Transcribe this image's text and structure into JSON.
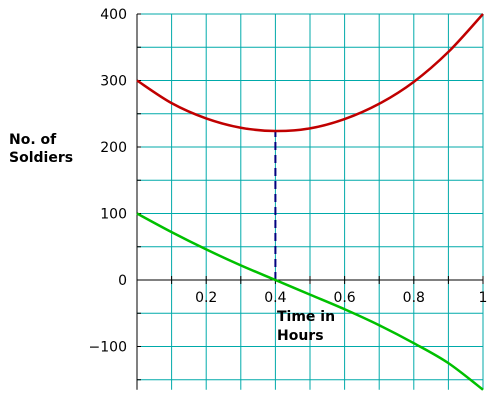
{
  "chart_data": {
    "type": "line",
    "xlabel": "Time in Hours",
    "xlabel_lines": [
      "Time in",
      "Hours"
    ],
    "ylabel": "No. of Soldiers",
    "ylabel_lines": [
      "No. of",
      "Soldiers"
    ],
    "xlim": [
      0,
      1
    ],
    "ylim": [
      -165,
      400
    ],
    "x_ticks": [
      0.2,
      0.4,
      0.6,
      0.8,
      1
    ],
    "x_tick_labels": [
      "0.2",
      "0.4",
      "0.6",
      "0.8",
      "1"
    ],
    "y_ticks": [
      400,
      300,
      200,
      100,
      0,
      -100
    ],
    "y_tick_labels": [
      "400",
      "300",
      "200",
      "100",
      "0",
      "−100"
    ],
    "grid": true,
    "series": [
      {
        "color": "#c00000",
        "x": [
          0,
          0.1,
          0.2,
          0.3,
          0.4,
          0.5,
          0.6,
          0.7,
          0.8,
          0.9,
          1.0
        ],
        "y": [
          300,
          266,
          243,
          229,
          224,
          228,
          242,
          265,
          298,
          343,
          400
        ]
      },
      {
        "color": "#00c000",
        "x": [
          0,
          0.1,
          0.2,
          0.3,
          0.4,
          0.5,
          0.6,
          0.7,
          0.8,
          0.9,
          1.0
        ],
        "y": [
          100,
          72,
          46,
          22,
          0,
          -22,
          -44,
          -68,
          -95,
          -125,
          -165
        ]
      }
    ],
    "annotations": [
      {
        "type": "vertical-dashed-line",
        "x": 0.4,
        "y_from": 0,
        "y_to": 224,
        "color": "#000080"
      }
    ]
  }
}
